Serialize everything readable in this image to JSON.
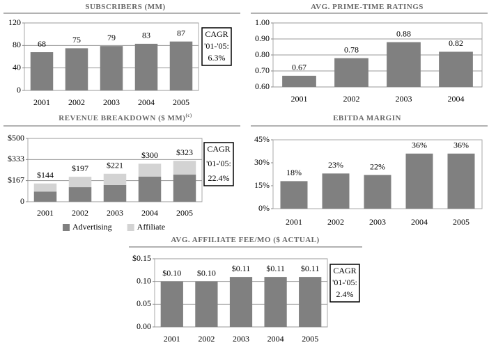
{
  "chart_data": [
    {
      "type": "bar",
      "title": "SUBSCRIBERS (MM)",
      "categories": [
        "2001",
        "2002",
        "2003",
        "2004",
        "2005"
      ],
      "values": [
        68,
        75,
        79,
        83,
        87
      ],
      "color": "#808080",
      "ylim": [
        0,
        120
      ],
      "yticks": [
        0,
        40,
        80,
        120
      ],
      "grid": true,
      "annotation": [
        "CAGR",
        "'01-'05:",
        "6.3%"
      ]
    },
    {
      "type": "bar",
      "title": "AVG. PRIME-TIME RATINGS",
      "categories": [
        "2001",
        "2002",
        "2003",
        "2004"
      ],
      "values": [
        0.67,
        0.78,
        0.88,
        0.82
      ],
      "color": "#808080",
      "ylim": [
        0.6,
        1.0
      ],
      "yticks": [
        {
          "value": 0.6,
          "label": "0.60"
        },
        {
          "value": 0.7,
          "label": "0.70"
        },
        {
          "value": 0.8,
          "label": "0.80"
        },
        {
          "value": 0.9,
          "label": "0.90"
        },
        {
          "value": 1.0,
          "label": "1.00"
        }
      ],
      "grid": true
    },
    {
      "type": "stacked_bar",
      "title": "REVENUE BREAKDOWN ($ MM)",
      "title_note": "(c)",
      "categories": [
        "2001",
        "2002",
        "2003",
        "2004",
        "2005"
      ],
      "series": [
        {
          "name": "Advertising",
          "color": "#808080",
          "values": [
            80,
            115,
            132,
            198,
            214
          ]
        },
        {
          "name": "Affiliate",
          "color": "#d3d3d3",
          "values": [
            64,
            82,
            89,
            102,
            109
          ]
        }
      ],
      "totals": [
        144,
        197,
        221,
        300,
        323
      ],
      "total_labels": [
        "$144",
        "$197",
        "$221",
        "$300",
        "$323"
      ],
      "ylim": [
        0,
        500
      ],
      "yticks": [
        0,
        {
          "value": 167,
          "label": "$167"
        },
        {
          "value": 333,
          "label": "$333"
        },
        {
          "value": 500,
          "label": "$500"
        }
      ],
      "grid": true,
      "legend": "bottom",
      "annotation": [
        "CAGR",
        "'01-'05:",
        "22.4%"
      ]
    },
    {
      "type": "bar",
      "title": "EBITDA MARGIN",
      "categories": [
        "2001",
        "2002",
        "2003",
        "2004",
        "2005"
      ],
      "values": [
        18,
        23,
        22,
        36,
        36
      ],
      "value_labels": [
        "18%",
        "23%",
        "22%",
        "36%",
        "36%"
      ],
      "color": "#808080",
      "ylim": [
        0,
        45
      ],
      "yticks": [
        {
          "value": 0,
          "label": "0%"
        },
        {
          "value": 15,
          "label": "15%"
        },
        {
          "value": 30,
          "label": "30%"
        },
        {
          "value": 45,
          "label": "45%"
        }
      ],
      "grid": false
    },
    {
      "type": "bar",
      "title": "AVG. AFFILIATE FEE/MO ($ ACTUAL)",
      "categories": [
        "2001",
        "2002",
        "2003",
        "2004",
        "2005"
      ],
      "values": [
        0.1,
        0.1,
        0.11,
        0.11,
        0.11
      ],
      "value_labels": [
        "$0.10",
        "$0.10",
        "$0.11",
        "$0.11",
        "$0.11"
      ],
      "color": "#808080",
      "ylim": [
        0,
        0.15
      ],
      "yticks": [
        {
          "value": 0,
          "label": "0.00"
        },
        {
          "value": 0.05,
          "label": "0.05"
        },
        {
          "value": 0.1,
          "label": "0.10"
        },
        {
          "value": 0.15,
          "label": "$0.15"
        }
      ],
      "grid": true,
      "annotation": [
        "CAGR",
        "'01-'05:",
        "2.4%"
      ]
    }
  ]
}
